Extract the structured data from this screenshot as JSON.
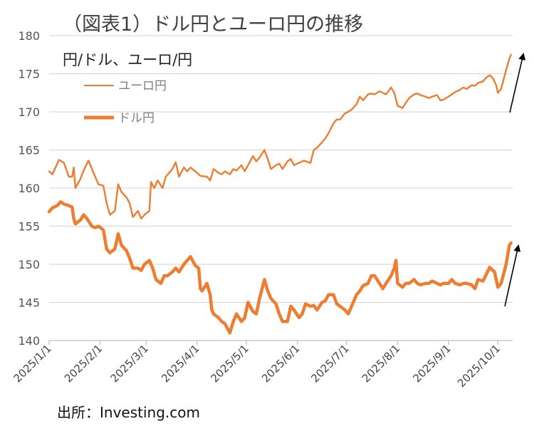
{
  "title": "（図表1）ドル円とユーロ円の推移",
  "unit_label": "円/ドル、ユーロ/円",
  "source": "出所：Investing.com",
  "colors": {
    "series": "#ed7d31",
    "grid": "#d9d9d9",
    "axis": "#bfbfbf",
    "arrow": "#000000"
  },
  "chart_data": {
    "type": "line",
    "title": "（図表1）ドル円とユーロ円の推移",
    "ylabel": "円/ドル、ユーロ/円",
    "xlabel": "",
    "ylim": [
      140,
      180
    ],
    "yticks": [
      "140",
      "145",
      "150",
      "155",
      "160",
      "165",
      "170",
      "175",
      "180"
    ],
    "xlim": [
      "2025-01-01",
      "2025-10-10"
    ],
    "x_ticks": [
      "2025/1/1",
      "2025/2/1",
      "2025/3/1",
      "2025/4/1",
      "2025/5/1",
      "2025/6/1",
      "2025/7/1",
      "2025/8/1",
      "2025/9/1",
      "2025/10/1"
    ],
    "x_tick_dates": [
      "2025-01-01",
      "2025-02-01",
      "2025-03-01",
      "2025-04-01",
      "2025-05-01",
      "2025-06-01",
      "2025-07-01",
      "2025-08-01",
      "2025-09-01",
      "2025-10-01"
    ],
    "grid": "horizontal",
    "legend_position": "top-left",
    "series": [
      {
        "name": "ユーロ円",
        "color": "#ed7d31",
        "line": "thin",
        "points": [
          [
            "2025-01-01",
            162.2
          ],
          [
            "2025-01-03",
            161.8
          ],
          [
            "2025-01-07",
            163.7
          ],
          [
            "2025-01-10",
            163.3
          ],
          [
            "2025-01-13",
            161.5
          ],
          [
            "2025-01-15",
            161.5
          ],
          [
            "2025-01-16",
            162.7
          ],
          [
            "2025-01-17",
            160.0
          ],
          [
            "2025-01-20",
            161.2
          ],
          [
            "2025-01-22",
            162.3
          ],
          [
            "2025-01-24",
            163.2
          ],
          [
            "2025-01-25",
            163.6
          ],
          [
            "2025-01-28",
            162.0
          ],
          [
            "2025-01-31",
            160.5
          ],
          [
            "2025-02-03",
            160.3
          ],
          [
            "2025-02-05",
            158.0
          ],
          [
            "2025-02-07",
            156.5
          ],
          [
            "2025-02-10",
            157.0
          ],
          [
            "2025-02-12",
            160.5
          ],
          [
            "2025-02-14",
            159.5
          ],
          [
            "2025-02-17",
            158.8
          ],
          [
            "2025-02-19",
            158.0
          ],
          [
            "2025-02-21",
            156.2
          ],
          [
            "2025-02-24",
            157.0
          ],
          [
            "2025-02-26",
            156.0
          ],
          [
            "2025-02-28",
            156.5
          ],
          [
            "2025-03-03",
            157.0
          ],
          [
            "2025-03-04",
            160.8
          ],
          [
            "2025-03-06",
            160.0
          ],
          [
            "2025-03-08",
            161.0
          ],
          [
            "2025-03-11",
            160.0
          ],
          [
            "2025-03-13",
            161.5
          ],
          [
            "2025-03-17",
            162.5
          ],
          [
            "2025-03-19",
            163.4
          ],
          [
            "2025-03-21",
            161.5
          ],
          [
            "2025-03-24",
            162.7
          ],
          [
            "2025-03-26",
            162.2
          ],
          [
            "2025-03-28",
            162.7
          ],
          [
            "2025-04-01",
            162.0
          ],
          [
            "2025-04-03",
            161.6
          ],
          [
            "2025-04-07",
            161.5
          ],
          [
            "2025-04-09",
            161.0
          ],
          [
            "2025-04-11",
            162.5
          ],
          [
            "2025-04-14",
            162.0
          ],
          [
            "2025-04-16",
            161.8
          ],
          [
            "2025-04-18",
            162.2
          ],
          [
            "2025-04-21",
            161.8
          ],
          [
            "2025-04-23",
            162.5
          ],
          [
            "2025-04-25",
            162.3
          ],
          [
            "2025-04-28",
            163.0
          ],
          [
            "2025-04-30",
            162.2
          ],
          [
            "2025-05-02",
            163.0
          ],
          [
            "2025-05-05",
            164.2
          ],
          [
            "2025-05-07",
            163.5
          ],
          [
            "2025-05-09",
            164.0
          ],
          [
            "2025-05-12",
            165.0
          ],
          [
            "2025-05-14",
            163.8
          ],
          [
            "2025-05-16",
            162.5
          ],
          [
            "2025-05-19",
            163.0
          ],
          [
            "2025-05-21",
            163.2
          ],
          [
            "2025-05-23",
            162.5
          ],
          [
            "2025-05-26",
            163.5
          ],
          [
            "2025-05-28",
            163.8
          ],
          [
            "2025-05-30",
            163.0
          ],
          [
            "2025-06-02",
            163.3
          ],
          [
            "2025-06-05",
            163.6
          ],
          [
            "2025-06-09",
            163.3
          ],
          [
            "2025-06-11",
            165.0
          ],
          [
            "2025-06-13",
            165.3
          ],
          [
            "2025-06-16",
            166.0
          ],
          [
            "2025-06-18",
            166.5
          ],
          [
            "2025-06-20",
            167.2
          ],
          [
            "2025-06-23",
            168.5
          ],
          [
            "2025-06-25",
            169.0
          ],
          [
            "2025-06-27",
            169.0
          ],
          [
            "2025-06-30",
            169.8
          ],
          [
            "2025-07-02",
            170.0
          ],
          [
            "2025-07-04",
            170.3
          ],
          [
            "2025-07-07",
            171.0
          ],
          [
            "2025-07-09",
            172.0
          ],
          [
            "2025-07-11",
            171.5
          ],
          [
            "2025-07-14",
            172.3
          ],
          [
            "2025-07-16",
            172.4
          ],
          [
            "2025-07-18",
            172.3
          ],
          [
            "2025-07-21",
            172.7
          ],
          [
            "2025-07-23",
            172.5
          ],
          [
            "2025-07-25",
            172.3
          ],
          [
            "2025-07-28",
            173.2
          ],
          [
            "2025-07-30",
            172.5
          ],
          [
            "2025-08-01",
            170.8
          ],
          [
            "2025-08-04",
            170.5
          ],
          [
            "2025-08-06",
            171.2
          ],
          [
            "2025-08-08",
            171.8
          ],
          [
            "2025-08-11",
            172.3
          ],
          [
            "2025-08-13",
            172.4
          ],
          [
            "2025-08-15",
            172.2
          ],
          [
            "2025-08-18",
            172.0
          ],
          [
            "2025-08-20",
            171.8
          ],
          [
            "2025-08-22",
            172.0
          ],
          [
            "2025-08-25",
            172.2
          ],
          [
            "2025-08-27",
            171.5
          ],
          [
            "2025-08-29",
            171.6
          ],
          [
            "2025-09-01",
            172.0
          ],
          [
            "2025-09-03",
            172.3
          ],
          [
            "2025-09-05",
            172.6
          ],
          [
            "2025-09-08",
            172.9
          ],
          [
            "2025-09-10",
            173.2
          ],
          [
            "2025-09-12",
            173.0
          ],
          [
            "2025-09-15",
            173.5
          ],
          [
            "2025-09-17",
            173.4
          ],
          [
            "2025-09-19",
            173.8
          ],
          [
            "2025-09-22",
            174.0
          ],
          [
            "2025-09-24",
            174.5
          ],
          [
            "2025-09-26",
            174.8
          ],
          [
            "2025-09-28",
            174.4
          ],
          [
            "2025-09-30",
            173.5
          ],
          [
            "2025-10-01",
            172.5
          ],
          [
            "2025-10-03",
            173.0
          ],
          [
            "2025-10-06",
            175.5
          ],
          [
            "2025-10-08",
            177.0
          ],
          [
            "2025-10-09",
            177.5
          ]
        ]
      },
      {
        "name": "ドル円",
        "color": "#ed7d31",
        "line": "thick",
        "points": [
          [
            "2025-01-01",
            156.9
          ],
          [
            "2025-01-03",
            157.4
          ],
          [
            "2025-01-06",
            157.7
          ],
          [
            "2025-01-08",
            158.2
          ],
          [
            "2025-01-10",
            157.9
          ],
          [
            "2025-01-13",
            157.7
          ],
          [
            "2025-01-15",
            157.5
          ],
          [
            "2025-01-16",
            156.0
          ],
          [
            "2025-01-17",
            155.3
          ],
          [
            "2025-01-20",
            155.8
          ],
          [
            "2025-01-22",
            156.5
          ],
          [
            "2025-01-24",
            156.0
          ],
          [
            "2025-01-27",
            155.0
          ],
          [
            "2025-01-29",
            154.8
          ],
          [
            "2025-01-31",
            155.0
          ],
          [
            "2025-02-03",
            154.5
          ],
          [
            "2025-02-05",
            152.0
          ],
          [
            "2025-02-07",
            151.5
          ],
          [
            "2025-02-10",
            152.0
          ],
          [
            "2025-02-12",
            154.0
          ],
          [
            "2025-02-14",
            152.5
          ],
          [
            "2025-02-17",
            151.8
          ],
          [
            "2025-02-19",
            150.8
          ],
          [
            "2025-02-21",
            149.5
          ],
          [
            "2025-02-24",
            149.5
          ],
          [
            "2025-02-26",
            149.2
          ],
          [
            "2025-02-28",
            150.0
          ],
          [
            "2025-03-03",
            150.5
          ],
          [
            "2025-03-05",
            149.5
          ],
          [
            "2025-03-07",
            148.0
          ],
          [
            "2025-03-10",
            147.5
          ],
          [
            "2025-03-12",
            148.5
          ],
          [
            "2025-03-14",
            148.5
          ],
          [
            "2025-03-17",
            149.0
          ],
          [
            "2025-03-19",
            149.5
          ],
          [
            "2025-03-21",
            149.0
          ],
          [
            "2025-03-24",
            150.0
          ],
          [
            "2025-03-26",
            150.5
          ],
          [
            "2025-03-28",
            151.0
          ],
          [
            "2025-03-31",
            149.8
          ],
          [
            "2025-04-02",
            149.5
          ],
          [
            "2025-04-03",
            146.8
          ],
          [
            "2025-04-04",
            146.5
          ],
          [
            "2025-04-07",
            147.5
          ],
          [
            "2025-04-09",
            146.0
          ],
          [
            "2025-04-10",
            144.0
          ],
          [
            "2025-04-11",
            143.5
          ],
          [
            "2025-04-14",
            143.0
          ],
          [
            "2025-04-16",
            142.5
          ],
          [
            "2025-04-18",
            142.2
          ],
          [
            "2025-04-21",
            141.0
          ],
          [
            "2025-04-23",
            142.5
          ],
          [
            "2025-04-25",
            143.5
          ],
          [
            "2025-04-28",
            142.5
          ],
          [
            "2025-04-30",
            143.0
          ],
          [
            "2025-05-02",
            145.0
          ],
          [
            "2025-05-05",
            143.8
          ],
          [
            "2025-05-07",
            143.5
          ],
          [
            "2025-05-09",
            145.5
          ],
          [
            "2025-05-12",
            148.0
          ],
          [
            "2025-05-14",
            146.5
          ],
          [
            "2025-05-16",
            145.5
          ],
          [
            "2025-05-19",
            144.8
          ],
          [
            "2025-05-21",
            143.5
          ],
          [
            "2025-05-23",
            142.5
          ],
          [
            "2025-05-26",
            142.5
          ],
          [
            "2025-05-28",
            144.5
          ],
          [
            "2025-05-30",
            144.0
          ],
          [
            "2025-06-02",
            143.0
          ],
          [
            "2025-06-04",
            143.5
          ],
          [
            "2025-06-06",
            144.8
          ],
          [
            "2025-06-09",
            144.5
          ],
          [
            "2025-06-11",
            144.6
          ],
          [
            "2025-06-13",
            144.0
          ],
          [
            "2025-06-16",
            145.0
          ],
          [
            "2025-06-18",
            145.2
          ],
          [
            "2025-06-20",
            146.0
          ],
          [
            "2025-06-23",
            146.0
          ],
          [
            "2025-06-25",
            144.8
          ],
          [
            "2025-06-27",
            144.5
          ],
          [
            "2025-06-30",
            144.0
          ],
          [
            "2025-07-02",
            143.5
          ],
          [
            "2025-07-04",
            144.5
          ],
          [
            "2025-07-07",
            146.0
          ],
          [
            "2025-07-09",
            146.5
          ],
          [
            "2025-07-11",
            147.2
          ],
          [
            "2025-07-14",
            147.5
          ],
          [
            "2025-07-16",
            148.5
          ],
          [
            "2025-07-18",
            148.5
          ],
          [
            "2025-07-21",
            147.5
          ],
          [
            "2025-07-23",
            146.8
          ],
          [
            "2025-07-25",
            147.5
          ],
          [
            "2025-07-28",
            148.5
          ],
          [
            "2025-07-30",
            149.5
          ],
          [
            "2025-07-31",
            150.5
          ],
          [
            "2025-08-01",
            147.5
          ],
          [
            "2025-08-04",
            147.0
          ],
          [
            "2025-08-06",
            147.5
          ],
          [
            "2025-08-08",
            147.5
          ],
          [
            "2025-08-11",
            148.0
          ],
          [
            "2025-08-13",
            147.5
          ],
          [
            "2025-08-15",
            147.3
          ],
          [
            "2025-08-18",
            147.5
          ],
          [
            "2025-08-20",
            147.5
          ],
          [
            "2025-08-22",
            147.8
          ],
          [
            "2025-08-25",
            147.5
          ],
          [
            "2025-08-27",
            147.3
          ],
          [
            "2025-08-29",
            147.5
          ],
          [
            "2025-09-01",
            147.5
          ],
          [
            "2025-09-03",
            148.0
          ],
          [
            "2025-09-05",
            147.5
          ],
          [
            "2025-09-08",
            147.3
          ],
          [
            "2025-09-10",
            147.5
          ],
          [
            "2025-09-12",
            147.5
          ],
          [
            "2025-09-15",
            147.3
          ],
          [
            "2025-09-17",
            146.8
          ],
          [
            "2025-09-19",
            148.0
          ],
          [
            "2025-09-22",
            147.8
          ],
          [
            "2025-09-24",
            148.7
          ],
          [
            "2025-09-26",
            149.6
          ],
          [
            "2025-09-29",
            149.0
          ],
          [
            "2025-09-30",
            148.0
          ],
          [
            "2025-10-01",
            147.0
          ],
          [
            "2025-10-03",
            147.5
          ],
          [
            "2025-10-06",
            150.0
          ],
          [
            "2025-10-08",
            152.5
          ],
          [
            "2025-10-09",
            152.8
          ]
        ]
      }
    ],
    "annotations": [
      {
        "type": "arrow",
        "series": "ユーロ円",
        "direction": "up"
      },
      {
        "type": "arrow",
        "series": "ドル円",
        "direction": "up"
      }
    ]
  }
}
